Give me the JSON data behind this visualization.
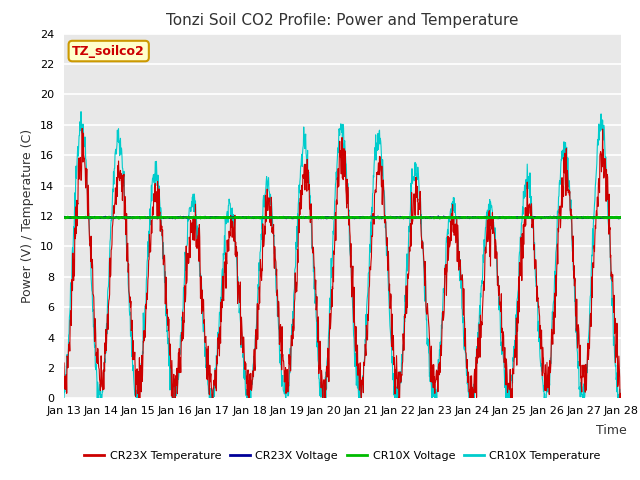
{
  "title": "Tonzi Soil CO2 Profile: Power and Temperature",
  "xlabel": "Time",
  "ylabel": "Power (V) / Temperature (C)",
  "ylim": [
    0,
    24
  ],
  "yticks": [
    0,
    2,
    4,
    6,
    8,
    10,
    12,
    14,
    16,
    18,
    20,
    22,
    24
  ],
  "xlim": [
    0,
    360
  ],
  "xtick_labels": [
    "Jan 13",
    "Jan 14",
    "Jan 15",
    "Jan 16",
    "Jan 17",
    "Jan 18",
    "Jan 19",
    "Jan 20",
    "Jan 21",
    "Jan 22",
    "Jan 23",
    "Jan 24",
    "Jan 25",
    "Jan 26",
    "Jan 27",
    "Jan 28"
  ],
  "xtick_positions": [
    0,
    24,
    48,
    72,
    96,
    120,
    144,
    168,
    192,
    216,
    240,
    264,
    288,
    312,
    336,
    360
  ],
  "voltage_line": 11.9,
  "fig_bg_color": "#ffffff",
  "plot_bg_color": "#e8e8e8",
  "grid_color": "#ffffff",
  "cr23x_temp_color": "#cc0000",
  "cr23x_volt_color": "#000099",
  "cr10x_volt_color": "#00bb00",
  "cr10x_temp_color": "#00cccc",
  "legend_box_facecolor": "#ffffcc",
  "legend_box_edgecolor": "#cc9900",
  "legend_text": "TZ_soilco2",
  "title_fontsize": 11,
  "label_fontsize": 9,
  "tick_fontsize": 8
}
